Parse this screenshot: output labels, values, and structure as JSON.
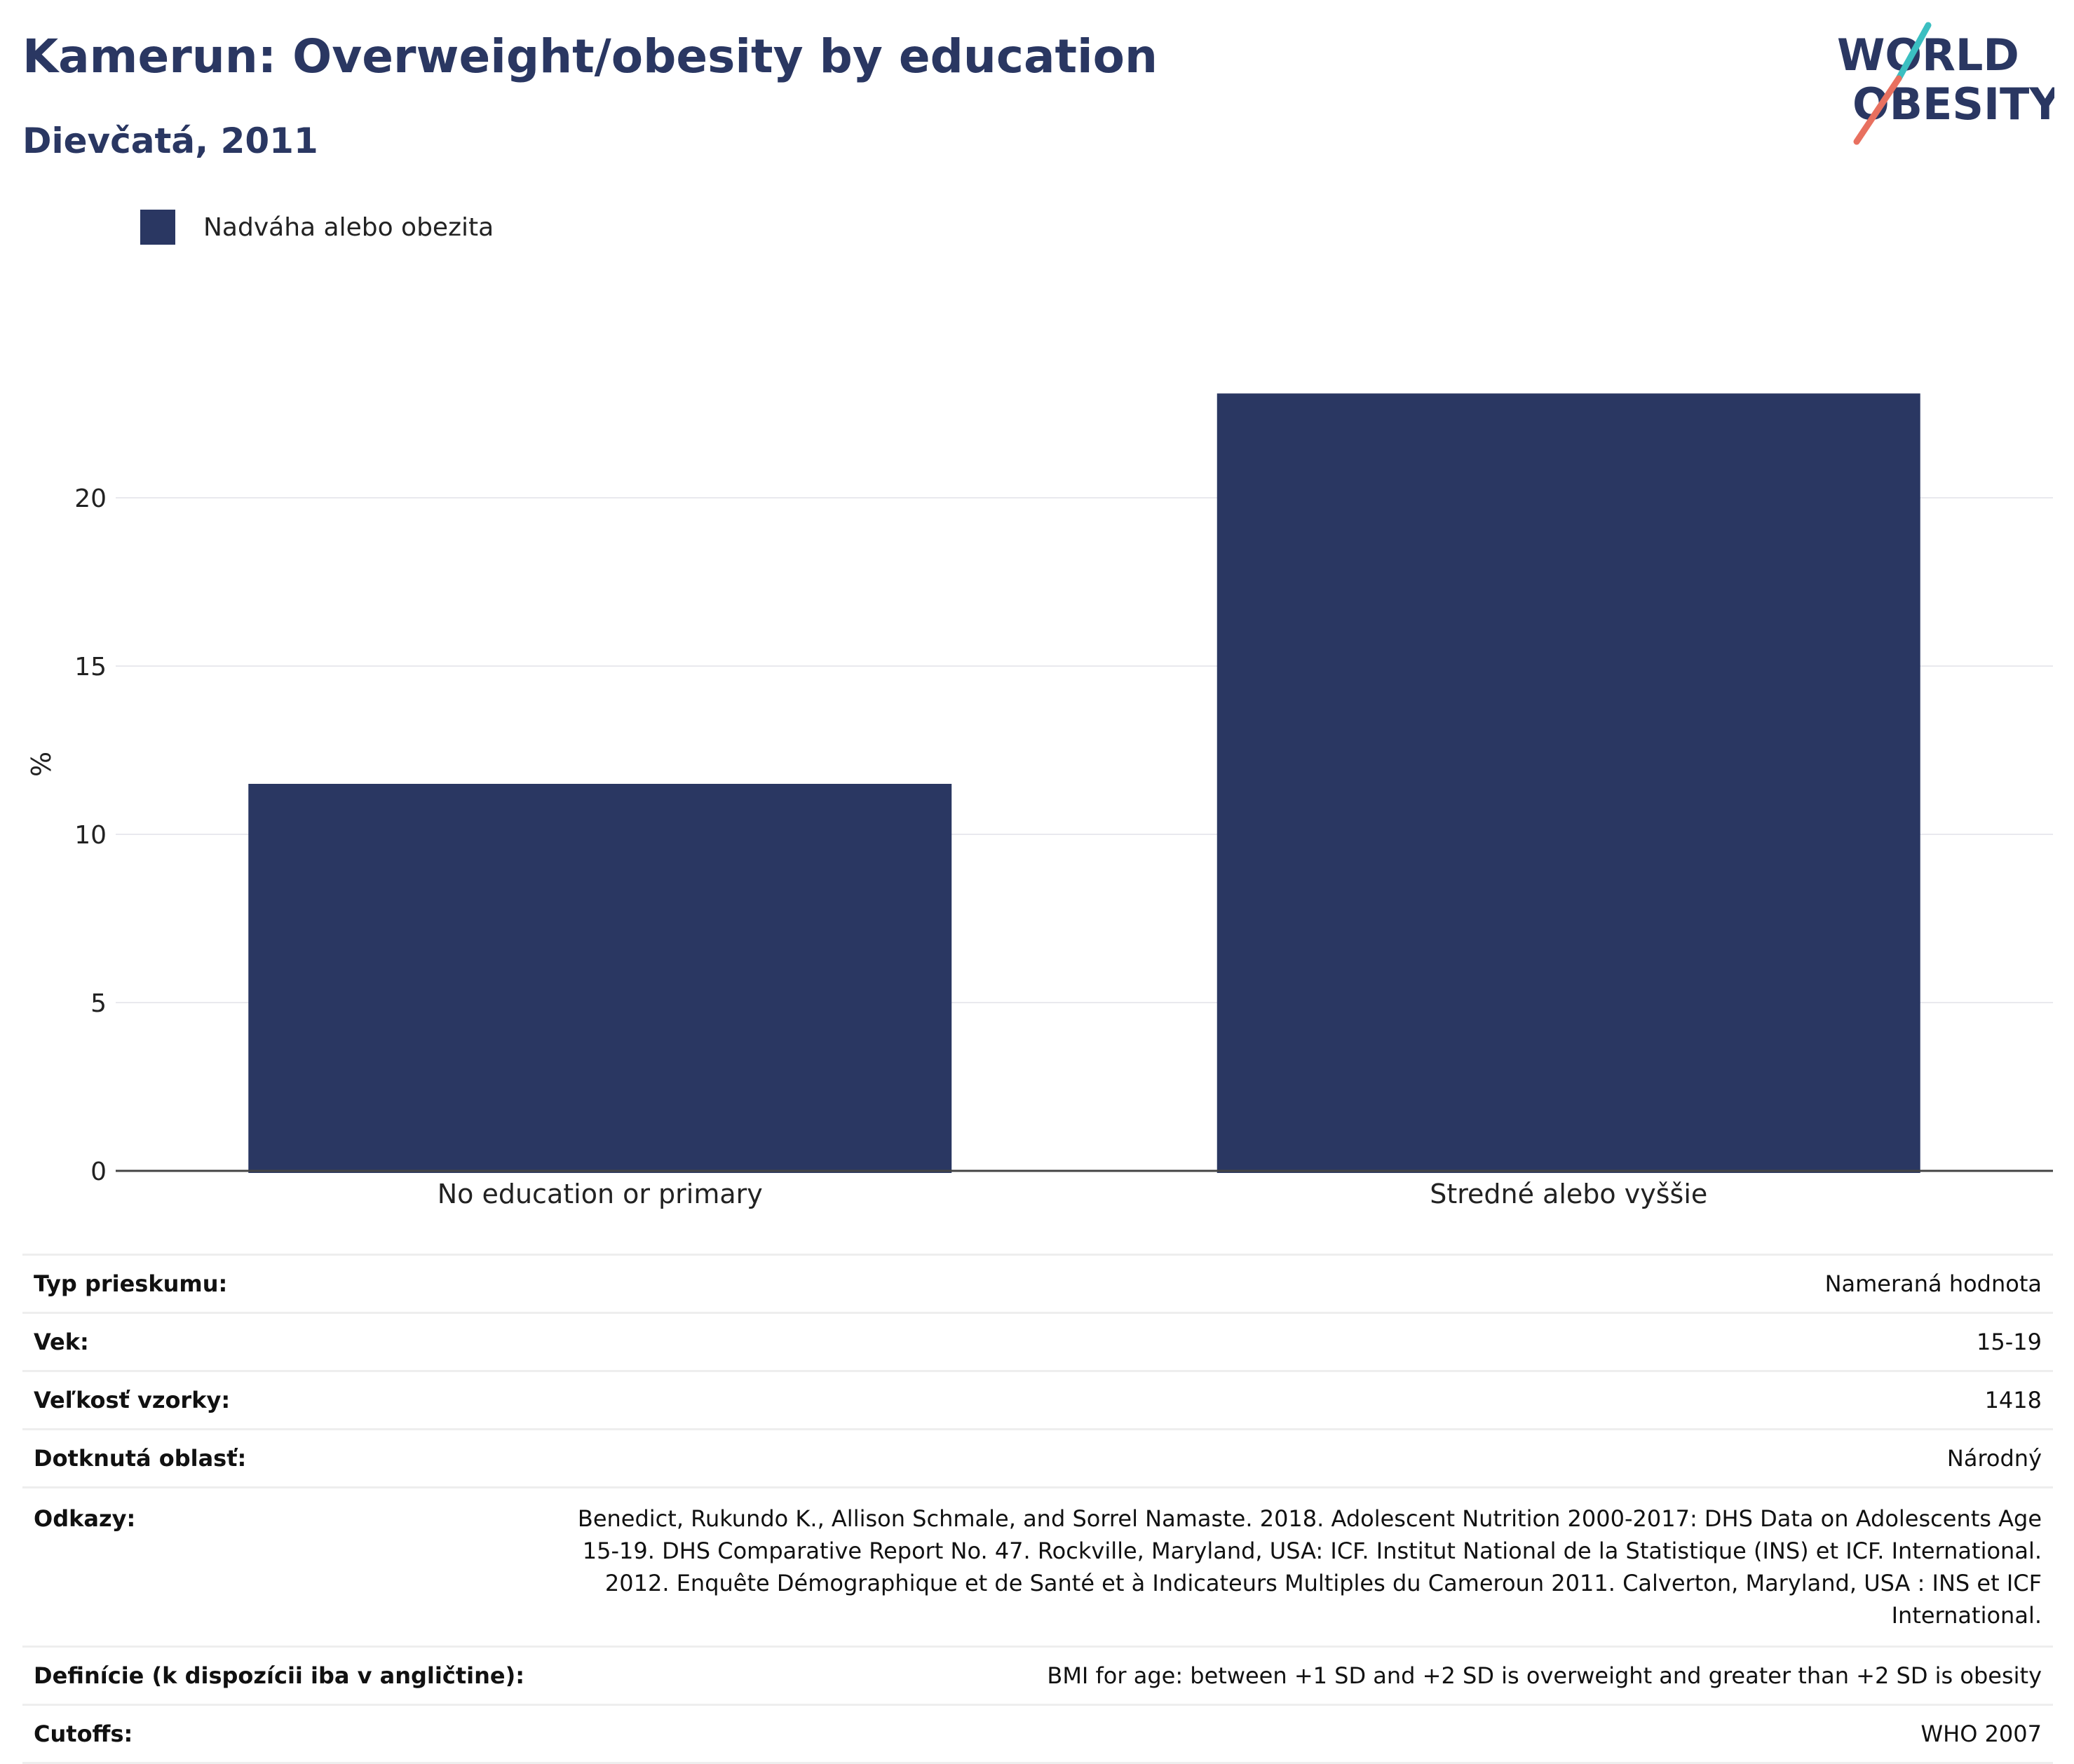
{
  "title": "Kamerun: Overweight/obesity by education",
  "subtitle": "Dievčatá, 2011",
  "logo": {
    "line1": "WORLD",
    "line2": "OBESITY",
    "accent_teal": "#3bbfc1",
    "accent_coral": "#e8705f"
  },
  "chart_data": {
    "type": "bar",
    "categories": [
      "No education or primary",
      "Stredné alebo vyššie"
    ],
    "series": [
      {
        "name": "Nadváha alebo obezita",
        "values": [
          11.5,
          23.1
        ],
        "color": "#2a3762"
      }
    ],
    "ylabel": "%",
    "xlabel": "",
    "ylim": [
      0,
      26
    ],
    "yticks": [
      0,
      5,
      10,
      15,
      20
    ],
    "grid": true,
    "legend": "top-left"
  },
  "info": [
    {
      "key": "Typ prieskumu:",
      "value": "Nameraná hodnota"
    },
    {
      "key": "Vek:",
      "value": "15-19"
    },
    {
      "key": "Veľkosť vzorky:",
      "value": "1418"
    },
    {
      "key": "Dotknutá oblasť:",
      "value": "Národný"
    },
    {
      "key": "Odkazy:",
      "value": "Benedict, Rukundo K., Allison Schmale, and Sorrel Namaste. 2018. Adolescent Nutrition 2000-2017: DHS Data on Adolescents Age 15-19. DHS Comparative Report No. 47. Rockville, Maryland, USA: ICF. Institut National de la Statistique (INS) et ICF. International. 2012. Enquête Démographique et de Santé et à Indicateurs Multiples du Cameroun 2011. Calverton, Maryland, USA : INS et ICF International."
    },
    {
      "key": "Definície (k dispozícii iba v angličtine):",
      "value": "BMI for age: between +1 SD and +2 SD is overweight and greater than +2 SD is obesity"
    },
    {
      "key": "Cutoffs:",
      "value": "WHO 2007"
    }
  ]
}
